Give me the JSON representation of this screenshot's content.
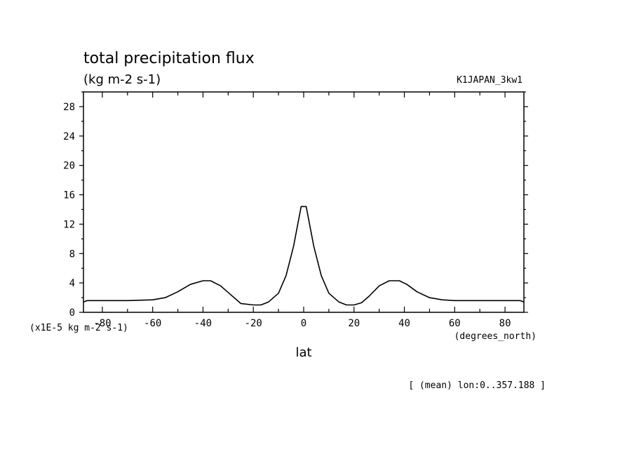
{
  "chart_data": {
    "type": "line",
    "title": "total precipitation flux",
    "units": "(kg m-2 s-1)",
    "dataset": "K1JAPAN_3kw1",
    "xlabel": "lat",
    "x_units": "(degrees_north)",
    "y_scale_note": "(x1E-5 kg m-2 s-1)",
    "footnote": "[ (mean) lon:0..357.188 ]",
    "xlim": [
      -87.5,
      87.5
    ],
    "ylim": [
      0,
      30
    ],
    "x_ticks": [
      -80,
      -60,
      -40,
      -20,
      0,
      20,
      40,
      60,
      80
    ],
    "x_tick_labels": [
      "-80",
      "-60",
      "-40",
      "-20",
      "0",
      "20",
      "40",
      "60",
      "80"
    ],
    "y_ticks": [
      0,
      4,
      8,
      12,
      16,
      20,
      24,
      28
    ],
    "y_tick_labels": [
      "0",
      "4",
      "8",
      "12",
      "16",
      "20",
      "24",
      "28"
    ],
    "grid": false,
    "series": [
      {
        "x": [
          -87.5,
          -86,
          -80,
          -70,
          -60,
          -55,
          -50,
          -45,
          -40,
          -37,
          -33,
          -30,
          -25,
          -20,
          -17,
          -14,
          -10,
          -7,
          -4,
          -1,
          1,
          4,
          7,
          10,
          14,
          17,
          20,
          23,
          26,
          30,
          34,
          38,
          41,
          45,
          50,
          55,
          60,
          70,
          80,
          86,
          87.5
        ],
        "y": [
          1.4,
          1.6,
          1.6,
          1.6,
          1.7,
          2.0,
          2.8,
          3.8,
          4.3,
          4.3,
          3.6,
          2.7,
          1.2,
          1.0,
          1.0,
          1.4,
          2.6,
          5.0,
          9.0,
          14.4,
          14.4,
          9.0,
          5.0,
          2.6,
          1.4,
          1.0,
          1.0,
          1.3,
          2.2,
          3.6,
          4.3,
          4.3,
          3.8,
          2.8,
          2.0,
          1.7,
          1.6,
          1.6,
          1.6,
          1.6,
          1.4
        ],
        "color": "#000000"
      }
    ]
  }
}
